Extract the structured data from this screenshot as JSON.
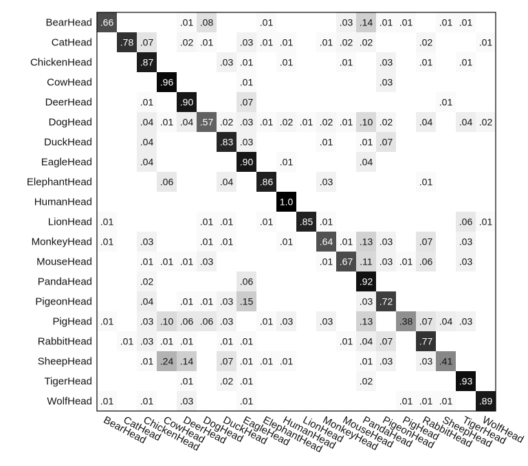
{
  "chart_data": {
    "type": "heatmap",
    "title": "",
    "labels": [
      "BearHead",
      "CatHead",
      "ChickenHead",
      "CowHead",
      "DeerHead",
      "DogHead",
      "DuckHead",
      "EagleHead",
      "ElephantHead",
      "HumanHead",
      "LionHead",
      "MonkeyHead",
      "MouseHead",
      "PandaHead",
      "PigeonHead",
      "PigHead",
      "RabbitHead",
      "SheepHead",
      "TigerHead",
      "WolfHead"
    ],
    "value_range": [
      0,
      1
    ],
    "colormap": "white-to-black (gray)",
    "cells": [
      {
        "r": 0,
        "c": 0,
        "v": ".66"
      },
      {
        "r": 0,
        "c": 4,
        "v": ".01"
      },
      {
        "r": 0,
        "c": 5,
        "v": ".08"
      },
      {
        "r": 0,
        "c": 8,
        "v": ".01"
      },
      {
        "r": 0,
        "c": 12,
        "v": ".03"
      },
      {
        "r": 0,
        "c": 13,
        "v": ".14"
      },
      {
        "r": 0,
        "c": 14,
        "v": ".01"
      },
      {
        "r": 0,
        "c": 15,
        "v": ".01"
      },
      {
        "r": 0,
        "c": 17,
        "v": ".01"
      },
      {
        "r": 0,
        "c": 18,
        "v": ".01"
      },
      {
        "r": 1,
        "c": 1,
        "v": ".78"
      },
      {
        "r": 1,
        "c": 2,
        "v": ".07"
      },
      {
        "r": 1,
        "c": 4,
        "v": ".02"
      },
      {
        "r": 1,
        "c": 5,
        "v": ".01"
      },
      {
        "r": 1,
        "c": 7,
        "v": ".03"
      },
      {
        "r": 1,
        "c": 8,
        "v": ".01"
      },
      {
        "r": 1,
        "c": 9,
        "v": ".01"
      },
      {
        "r": 1,
        "c": 11,
        "v": ".01"
      },
      {
        "r": 1,
        "c": 12,
        "v": ".02"
      },
      {
        "r": 1,
        "c": 13,
        "v": ".02"
      },
      {
        "r": 1,
        "c": 16,
        "v": ".02"
      },
      {
        "r": 1,
        "c": 19,
        "v": ".01"
      },
      {
        "r": 2,
        "c": 2,
        "v": ".87"
      },
      {
        "r": 2,
        "c": 6,
        "v": ".03"
      },
      {
        "r": 2,
        "c": 7,
        "v": ".01"
      },
      {
        "r": 2,
        "c": 9,
        "v": ".01"
      },
      {
        "r": 2,
        "c": 12,
        "v": ".01"
      },
      {
        "r": 2,
        "c": 14,
        "v": ".03"
      },
      {
        "r": 2,
        "c": 16,
        "v": ".01"
      },
      {
        "r": 2,
        "c": 18,
        "v": ".01"
      },
      {
        "r": 3,
        "c": 3,
        "v": ".96"
      },
      {
        "r": 3,
        "c": 7,
        "v": ".01"
      },
      {
        "r": 3,
        "c": 14,
        "v": ".03"
      },
      {
        "r": 4,
        "c": 2,
        "v": ".01"
      },
      {
        "r": 4,
        "c": 4,
        "v": ".90"
      },
      {
        "r": 4,
        "c": 7,
        "v": ".07"
      },
      {
        "r": 4,
        "c": 17,
        "v": ".01"
      },
      {
        "r": 5,
        "c": 2,
        "v": ".04"
      },
      {
        "r": 5,
        "c": 3,
        "v": ".01"
      },
      {
        "r": 5,
        "c": 4,
        "v": ".04"
      },
      {
        "r": 5,
        "c": 5,
        "v": ".57"
      },
      {
        "r": 5,
        "c": 6,
        "v": ".02"
      },
      {
        "r": 5,
        "c": 7,
        "v": ".03"
      },
      {
        "r": 5,
        "c": 8,
        "v": ".01"
      },
      {
        "r": 5,
        "c": 9,
        "v": ".02"
      },
      {
        "r": 5,
        "c": 10,
        "v": ".01"
      },
      {
        "r": 5,
        "c": 11,
        "v": ".02"
      },
      {
        "r": 5,
        "c": 12,
        "v": ".01"
      },
      {
        "r": 5,
        "c": 13,
        "v": ".10"
      },
      {
        "r": 5,
        "c": 14,
        "v": ".02"
      },
      {
        "r": 5,
        "c": 16,
        "v": ".04"
      },
      {
        "r": 5,
        "c": 18,
        "v": ".04"
      },
      {
        "r": 5,
        "c": 19,
        "v": ".02"
      },
      {
        "r": 6,
        "c": 2,
        "v": ".04"
      },
      {
        "r": 6,
        "c": 6,
        "v": ".83"
      },
      {
        "r": 6,
        "c": 7,
        "v": ".03"
      },
      {
        "r": 6,
        "c": 11,
        "v": ".01"
      },
      {
        "r": 6,
        "c": 13,
        "v": ".01"
      },
      {
        "r": 6,
        "c": 14,
        "v": ".07"
      },
      {
        "r": 7,
        "c": 2,
        "v": ".04"
      },
      {
        "r": 7,
        "c": 7,
        "v": ".90"
      },
      {
        "r": 7,
        "c": 9,
        "v": ".01"
      },
      {
        "r": 7,
        "c": 13,
        "v": ".04"
      },
      {
        "r": 8,
        "c": 3,
        "v": ".06"
      },
      {
        "r": 8,
        "c": 6,
        "v": ".04"
      },
      {
        "r": 8,
        "c": 8,
        "v": ".86"
      },
      {
        "r": 8,
        "c": 11,
        "v": ".03"
      },
      {
        "r": 8,
        "c": 16,
        "v": ".01"
      },
      {
        "r": 9,
        "c": 9,
        "v": "1.0"
      },
      {
        "r": 10,
        "c": 0,
        "v": ".01"
      },
      {
        "r": 10,
        "c": 5,
        "v": ".01"
      },
      {
        "r": 10,
        "c": 6,
        "v": ".01"
      },
      {
        "r": 10,
        "c": 8,
        "v": ".01"
      },
      {
        "r": 10,
        "c": 10,
        "v": ".85"
      },
      {
        "r": 10,
        "c": 11,
        "v": ".01"
      },
      {
        "r": 10,
        "c": 18,
        "v": ".06"
      },
      {
        "r": 10,
        "c": 19,
        "v": ".01"
      },
      {
        "r": 11,
        "c": 0,
        "v": ".01"
      },
      {
        "r": 11,
        "c": 2,
        "v": ".03"
      },
      {
        "r": 11,
        "c": 5,
        "v": ".01"
      },
      {
        "r": 11,
        "c": 6,
        "v": ".01"
      },
      {
        "r": 11,
        "c": 9,
        "v": ".01"
      },
      {
        "r": 11,
        "c": 11,
        "v": ".64"
      },
      {
        "r": 11,
        "c": 12,
        "v": ".01"
      },
      {
        "r": 11,
        "c": 13,
        "v": ".13"
      },
      {
        "r": 11,
        "c": 14,
        "v": ".03"
      },
      {
        "r": 11,
        "c": 16,
        "v": ".07"
      },
      {
        "r": 11,
        "c": 18,
        "v": ".03"
      },
      {
        "r": 12,
        "c": 2,
        "v": ".01"
      },
      {
        "r": 12,
        "c": 3,
        "v": ".01"
      },
      {
        "r": 12,
        "c": 4,
        "v": ".01"
      },
      {
        "r": 12,
        "c": 5,
        "v": ".03"
      },
      {
        "r": 12,
        "c": 11,
        "v": ".01"
      },
      {
        "r": 12,
        "c": 12,
        "v": ".67"
      },
      {
        "r": 12,
        "c": 13,
        "v": ".11"
      },
      {
        "r": 12,
        "c": 14,
        "v": ".03"
      },
      {
        "r": 12,
        "c": 15,
        "v": ".01"
      },
      {
        "r": 12,
        "c": 16,
        "v": ".06"
      },
      {
        "r": 12,
        "c": 18,
        "v": ".03"
      },
      {
        "r": 13,
        "c": 2,
        "v": ".02"
      },
      {
        "r": 13,
        "c": 7,
        "v": ".06"
      },
      {
        "r": 13,
        "c": 13,
        "v": ".92"
      },
      {
        "r": 14,
        "c": 2,
        "v": ".04"
      },
      {
        "r": 14,
        "c": 4,
        "v": ".01"
      },
      {
        "r": 14,
        "c": 5,
        "v": ".01"
      },
      {
        "r": 14,
        "c": 6,
        "v": ".03"
      },
      {
        "r": 14,
        "c": 7,
        "v": ".15"
      },
      {
        "r": 14,
        "c": 13,
        "v": ".03"
      },
      {
        "r": 14,
        "c": 14,
        "v": ".72"
      },
      {
        "r": 15,
        "c": 0,
        "v": ".01"
      },
      {
        "r": 15,
        "c": 2,
        "v": ".03"
      },
      {
        "r": 15,
        "c": 3,
        "v": ".10"
      },
      {
        "r": 15,
        "c": 4,
        "v": ".06"
      },
      {
        "r": 15,
        "c": 5,
        "v": ".06"
      },
      {
        "r": 15,
        "c": 6,
        "v": ".03"
      },
      {
        "r": 15,
        "c": 8,
        "v": ".01"
      },
      {
        "r": 15,
        "c": 9,
        "v": ".03"
      },
      {
        "r": 15,
        "c": 11,
        "v": ".03"
      },
      {
        "r": 15,
        "c": 13,
        "v": ".13"
      },
      {
        "r": 15,
        "c": 15,
        "v": ".38"
      },
      {
        "r": 15,
        "c": 16,
        "v": ".07"
      },
      {
        "r": 15,
        "c": 17,
        "v": ".04"
      },
      {
        "r": 15,
        "c": 18,
        "v": ".03"
      },
      {
        "r": 16,
        "c": 1,
        "v": ".01"
      },
      {
        "r": 16,
        "c": 2,
        "v": ".03"
      },
      {
        "r": 16,
        "c": 3,
        "v": ".01"
      },
      {
        "r": 16,
        "c": 4,
        "v": ".01"
      },
      {
        "r": 16,
        "c": 6,
        "v": ".01"
      },
      {
        "r": 16,
        "c": 7,
        "v": ".01"
      },
      {
        "r": 16,
        "c": 12,
        "v": ".01"
      },
      {
        "r": 16,
        "c": 13,
        "v": ".04"
      },
      {
        "r": 16,
        "c": 14,
        "v": ".07"
      },
      {
        "r": 16,
        "c": 16,
        "v": ".77"
      },
      {
        "r": 17,
        "c": 2,
        "v": ".01"
      },
      {
        "r": 17,
        "c": 3,
        "v": ".24"
      },
      {
        "r": 17,
        "c": 4,
        "v": ".14"
      },
      {
        "r": 17,
        "c": 6,
        "v": ".07"
      },
      {
        "r": 17,
        "c": 7,
        "v": ".01"
      },
      {
        "r": 17,
        "c": 8,
        "v": ".01"
      },
      {
        "r": 17,
        "c": 9,
        "v": ".01"
      },
      {
        "r": 17,
        "c": 13,
        "v": ".01"
      },
      {
        "r": 17,
        "c": 14,
        "v": ".03"
      },
      {
        "r": 17,
        "c": 16,
        "v": ".03"
      },
      {
        "r": 17,
        "c": 17,
        "v": ".41"
      },
      {
        "r": 18,
        "c": 4,
        "v": ".01"
      },
      {
        "r": 18,
        "c": 6,
        "v": ".02"
      },
      {
        "r": 18,
        "c": 7,
        "v": ".01"
      },
      {
        "r": 18,
        "c": 13,
        "v": ".02"
      },
      {
        "r": 18,
        "c": 18,
        "v": ".93"
      },
      {
        "r": 19,
        "c": 0,
        "v": ".01"
      },
      {
        "r": 19,
        "c": 2,
        "v": ".01"
      },
      {
        "r": 19,
        "c": 4,
        "v": ".03"
      },
      {
        "r": 19,
        "c": 7,
        "v": ".01"
      },
      {
        "r": 19,
        "c": 15,
        "v": ".01"
      },
      {
        "r": 19,
        "c": 16,
        "v": ".01"
      },
      {
        "r": 19,
        "c": 17,
        "v": ".01"
      },
      {
        "r": 19,
        "c": 19,
        "v": ".89"
      }
    ]
  }
}
